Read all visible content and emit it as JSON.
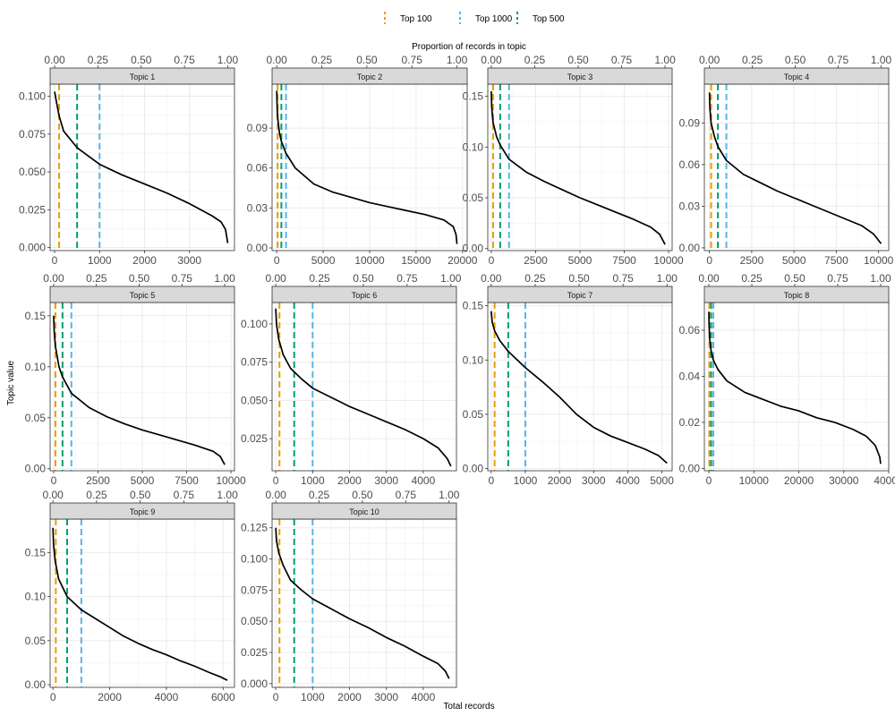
{
  "chart_data": {
    "type": "line",
    "layout": "facet-grid",
    "bottom_axis_label": "Total records",
    "top_axis_label": "Proportion of records in topic",
    "ylabel": "Topic value",
    "top_axis_ticks": [
      "0.00",
      "0.25",
      "0.50",
      "0.75",
      "1.00"
    ],
    "grid": true,
    "legend": {
      "position": "top",
      "entries": [
        {
          "label": "Top 100",
          "color": "#E69F00",
          "records": 100
        },
        {
          "label": "Top 1000",
          "color": "#56B4E9",
          "records": 1000
        },
        {
          "label": "Top 500",
          "color": "#009E73",
          "records": 500
        }
      ]
    },
    "panels": [
      {
        "title": "Topic 1",
        "n": 3850,
        "xlim": [
          -100,
          4000
        ],
        "xticks": [
          0,
          1000,
          2000,
          3000
        ],
        "ylim": [
          -0.002,
          0.108
        ],
        "yticks": [
          0.0,
          0.025,
          0.05,
          0.075,
          0.1
        ],
        "ytick_labels": [
          "0.000",
          "0.025",
          "0.050",
          "0.075",
          "0.100"
        ],
        "curve": [
          [
            0,
            0.103
          ],
          [
            30,
            0.098
          ],
          [
            100,
            0.087
          ],
          [
            200,
            0.077
          ],
          [
            500,
            0.066
          ],
          [
            1000,
            0.055
          ],
          [
            1500,
            0.048
          ],
          [
            2000,
            0.042
          ],
          [
            2500,
            0.036
          ],
          [
            3000,
            0.029
          ],
          [
            3500,
            0.021
          ],
          [
            3700,
            0.017
          ],
          [
            3800,
            0.012
          ],
          [
            3850,
            0.003
          ]
        ]
      },
      {
        "title": "Topic 2",
        "n": 19400,
        "xlim": [
          -500,
          20500
        ],
        "xticks": [
          0,
          5000,
          10000,
          15000,
          20000
        ],
        "ylim": [
          -0.002,
          0.123
        ],
        "yticks": [
          0.0,
          0.03,
          0.06,
          0.09
        ],
        "ytick_labels": [
          "0.00",
          "0.03",
          "0.06",
          "0.09"
        ],
        "curve": [
          [
            0,
            0.118
          ],
          [
            50,
            0.105
          ],
          [
            100,
            0.098
          ],
          [
            300,
            0.086
          ],
          [
            500,
            0.08
          ],
          [
            1000,
            0.071
          ],
          [
            2000,
            0.06
          ],
          [
            4000,
            0.048
          ],
          [
            6000,
            0.042
          ],
          [
            8000,
            0.038
          ],
          [
            10000,
            0.034
          ],
          [
            12000,
            0.031
          ],
          [
            14000,
            0.028
          ],
          [
            16000,
            0.025
          ],
          [
            18000,
            0.021
          ],
          [
            19000,
            0.016
          ],
          [
            19300,
            0.01
          ],
          [
            19400,
            0.003
          ]
        ]
      },
      {
        "title": "Topic 3",
        "n": 9800,
        "xlim": [
          -200,
          10200
        ],
        "xticks": [
          0,
          2500,
          5000,
          7500,
          10000
        ],
        "ylim": [
          -0.002,
          0.162
        ],
        "yticks": [
          0.0,
          0.05,
          0.1,
          0.15
        ],
        "ytick_labels": [
          "0.00",
          "0.05",
          "0.10",
          "0.15"
        ],
        "curve": [
          [
            0,
            0.155
          ],
          [
            20,
            0.14
          ],
          [
            100,
            0.124
          ],
          [
            300,
            0.11
          ],
          [
            500,
            0.102
          ],
          [
            1000,
            0.088
          ],
          [
            2000,
            0.075
          ],
          [
            3000,
            0.066
          ],
          [
            4000,
            0.058
          ],
          [
            5000,
            0.05
          ],
          [
            6000,
            0.043
          ],
          [
            7000,
            0.036
          ],
          [
            8000,
            0.029
          ],
          [
            9000,
            0.021
          ],
          [
            9500,
            0.014
          ],
          [
            9800,
            0.004
          ]
        ]
      },
      {
        "title": "Topic 4",
        "n": 10150,
        "xlim": [
          -300,
          10600
        ],
        "xticks": [
          0,
          2500,
          5000,
          7500,
          10000
        ],
        "ylim": [
          -0.002,
          0.118
        ],
        "yticks": [
          0.0,
          0.03,
          0.06,
          0.09
        ],
        "ytick_labels": [
          "0.00",
          "0.03",
          "0.06",
          "0.09"
        ],
        "curve": [
          [
            0,
            0.112
          ],
          [
            30,
            0.1
          ],
          [
            100,
            0.09
          ],
          [
            300,
            0.08
          ],
          [
            500,
            0.073
          ],
          [
            1000,
            0.063
          ],
          [
            2000,
            0.053
          ],
          [
            3000,
            0.047
          ],
          [
            4000,
            0.041
          ],
          [
            5000,
            0.036
          ],
          [
            6000,
            0.031
          ],
          [
            7000,
            0.026
          ],
          [
            8000,
            0.021
          ],
          [
            9000,
            0.016
          ],
          [
            9700,
            0.01
          ],
          [
            10150,
            0.003
          ]
        ]
      },
      {
        "title": "Topic 5",
        "n": 9650,
        "xlim": [
          -200,
          10200
        ],
        "xticks": [
          0,
          2500,
          5000,
          7500,
          10000
        ],
        "ylim": [
          -0.002,
          0.163
        ],
        "yticks": [
          0.0,
          0.05,
          0.1,
          0.15
        ],
        "ytick_labels": [
          "0.00",
          "0.05",
          "0.10",
          "0.15"
        ],
        "curve": [
          [
            0,
            0.15
          ],
          [
            30,
            0.135
          ],
          [
            100,
            0.12
          ],
          [
            300,
            0.1
          ],
          [
            500,
            0.09
          ],
          [
            1000,
            0.074
          ],
          [
            2000,
            0.06
          ],
          [
            3000,
            0.051
          ],
          [
            4000,
            0.044
          ],
          [
            5000,
            0.038
          ],
          [
            6000,
            0.033
          ],
          [
            7000,
            0.028
          ],
          [
            8000,
            0.023
          ],
          [
            9000,
            0.017
          ],
          [
            9400,
            0.012
          ],
          [
            9650,
            0.004
          ]
        ]
      },
      {
        "title": "Topic 6",
        "n": 4750,
        "xlim": [
          -100,
          4900
        ],
        "xticks": [
          0,
          1000,
          2000,
          3000,
          4000
        ],
        "ylim": [
          0.004,
          0.114
        ],
        "yticks": [
          0.025,
          0.05,
          0.075,
          0.1
        ],
        "ytick_labels": [
          "0.025",
          "0.050",
          "0.075",
          "0.100"
        ],
        "curve": [
          [
            0,
            0.11
          ],
          [
            20,
            0.1
          ],
          [
            80,
            0.09
          ],
          [
            200,
            0.08
          ],
          [
            400,
            0.071
          ],
          [
            700,
            0.064
          ],
          [
            1000,
            0.058
          ],
          [
            1500,
            0.052
          ],
          [
            2000,
            0.046
          ],
          [
            2500,
            0.041
          ],
          [
            3000,
            0.036
          ],
          [
            3500,
            0.031
          ],
          [
            4000,
            0.025
          ],
          [
            4400,
            0.019
          ],
          [
            4650,
            0.012
          ],
          [
            4750,
            0.007
          ]
        ]
      },
      {
        "title": "Topic 7",
        "n": 5150,
        "xlim": [
          -100,
          5300
        ],
        "xticks": [
          0,
          1000,
          2000,
          3000,
          4000,
          5000
        ],
        "ylim": [
          -0.002,
          0.153
        ],
        "yticks": [
          0.0,
          0.05,
          0.1,
          0.15
        ],
        "ytick_labels": [
          "0.00",
          "0.05",
          "0.10",
          "0.15"
        ],
        "curve": [
          [
            0,
            0.145
          ],
          [
            30,
            0.135
          ],
          [
            100,
            0.127
          ],
          [
            250,
            0.118
          ],
          [
            500,
            0.108
          ],
          [
            1000,
            0.093
          ],
          [
            1500,
            0.08
          ],
          [
            2000,
            0.066
          ],
          [
            2500,
            0.05
          ],
          [
            3000,
            0.038
          ],
          [
            3500,
            0.03
          ],
          [
            4000,
            0.024
          ],
          [
            4500,
            0.018
          ],
          [
            4900,
            0.012
          ],
          [
            5150,
            0.005
          ]
        ]
      },
      {
        "title": "Topic 8",
        "n": 38200,
        "xlim": [
          -1000,
          40000
        ],
        "xticks": [
          0,
          10000,
          20000,
          30000,
          40000
        ],
        "ylim": [
          -0.001,
          0.072
        ],
        "yticks": [
          0.0,
          0.02,
          0.04,
          0.06
        ],
        "ytick_labels": [
          "0.00",
          "0.02",
          "0.04",
          "0.06"
        ],
        "curve": [
          [
            0,
            0.068
          ],
          [
            50,
            0.062
          ],
          [
            200,
            0.056
          ],
          [
            500,
            0.051
          ],
          [
            1000,
            0.047
          ],
          [
            2000,
            0.043
          ],
          [
            4000,
            0.038
          ],
          [
            8000,
            0.033
          ],
          [
            12000,
            0.03
          ],
          [
            16000,
            0.027
          ],
          [
            20000,
            0.025
          ],
          [
            24000,
            0.022
          ],
          [
            28000,
            0.02
          ],
          [
            32000,
            0.017
          ],
          [
            35000,
            0.014
          ],
          [
            37000,
            0.01
          ],
          [
            38000,
            0.005
          ],
          [
            38200,
            0.002
          ]
        ]
      },
      {
        "title": "Topic 9",
        "n": 6150,
        "xlim": [
          -100,
          6400
        ],
        "xticks": [
          0,
          2000,
          4000,
          6000
        ],
        "ylim": [
          -0.003,
          0.188
        ],
        "yticks": [
          0.0,
          0.05,
          0.1,
          0.15
        ],
        "ytick_labels": [
          "0.00",
          "0.05",
          "0.10",
          "0.15"
        ],
        "curve": [
          [
            0,
            0.178
          ],
          [
            20,
            0.16
          ],
          [
            80,
            0.14
          ],
          [
            200,
            0.12
          ],
          [
            500,
            0.1
          ],
          [
            1000,
            0.085
          ],
          [
            1500,
            0.075
          ],
          [
            2000,
            0.065
          ],
          [
            2500,
            0.055
          ],
          [
            3000,
            0.047
          ],
          [
            3500,
            0.04
          ],
          [
            4000,
            0.034
          ],
          [
            4500,
            0.027
          ],
          [
            5000,
            0.021
          ],
          [
            5500,
            0.014
          ],
          [
            5900,
            0.009
          ],
          [
            6150,
            0.005
          ]
        ]
      },
      {
        "title": "Topic 10",
        "n": 4700,
        "xlim": [
          -100,
          4900
        ],
        "xticks": [
          0,
          1000,
          2000,
          3000,
          4000
        ],
        "ylim": [
          -0.003,
          0.132
        ],
        "yticks": [
          0.0,
          0.025,
          0.05,
          0.075,
          0.1,
          0.125
        ],
        "ytick_labels": [
          "0.000",
          "0.025",
          "0.050",
          "0.075",
          "0.100",
          "0.125"
        ],
        "curve": [
          [
            0,
            0.125
          ],
          [
            20,
            0.115
          ],
          [
            80,
            0.105
          ],
          [
            200,
            0.095
          ],
          [
            400,
            0.083
          ],
          [
            700,
            0.075
          ],
          [
            1000,
            0.068
          ],
          [
            1500,
            0.06
          ],
          [
            2000,
            0.052
          ],
          [
            2500,
            0.045
          ],
          [
            3000,
            0.037
          ],
          [
            3500,
            0.03
          ],
          [
            4000,
            0.022
          ],
          [
            4400,
            0.016
          ],
          [
            4600,
            0.01
          ],
          [
            4700,
            0.004
          ]
        ]
      }
    ]
  }
}
